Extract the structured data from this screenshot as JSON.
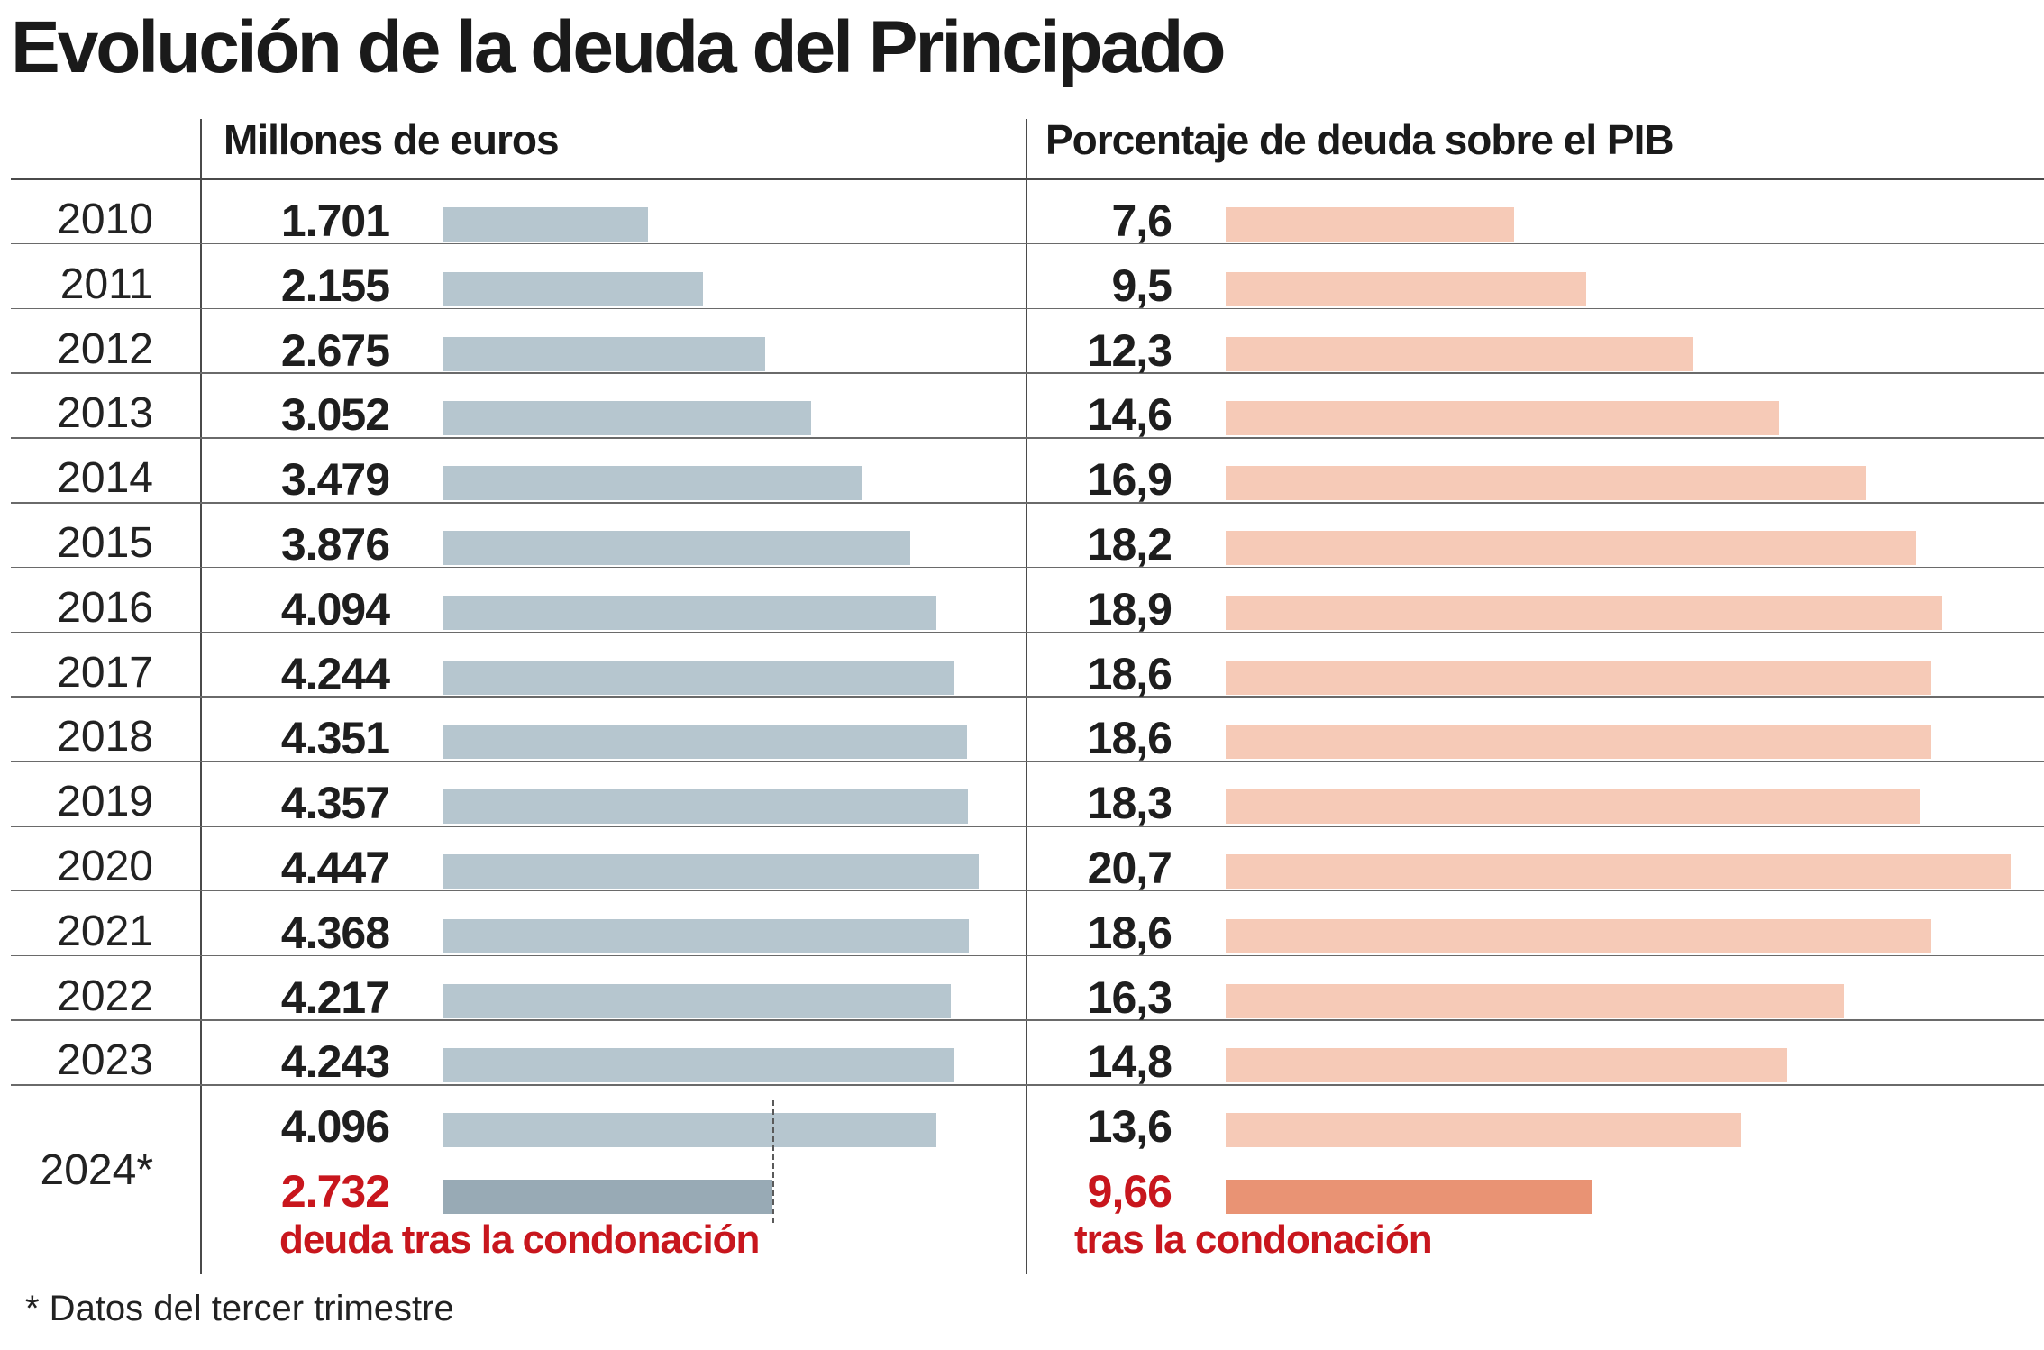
{
  "title": "Evolución de la deuda del Principado",
  "footnote": "* Datos del tercer trimestre",
  "chart_data": [
    {
      "type": "bar",
      "orientation": "horizontal",
      "title": "Millones de euros",
      "categories": [
        "2010",
        "2011",
        "2012",
        "2013",
        "2014",
        "2015",
        "2016",
        "2017",
        "2018",
        "2019",
        "2020",
        "2021",
        "2022",
        "2023",
        "2024*"
      ],
      "values": [
        1701,
        2155,
        2675,
        3052,
        3479,
        3876,
        4094,
        4244,
        4351,
        4357,
        4447,
        4368,
        4217,
        4243,
        4096
      ],
      "value_labels": [
        "1.701",
        "2.155",
        "2.675",
        "3.052",
        "3.479",
        "3.876",
        "4.094",
        "4.244",
        "4.351",
        "4.357",
        "4.447",
        "4.368",
        "4.217",
        "4.243",
        "4.096"
      ],
      "after_value": 2732,
      "after_label": "2.732",
      "after_note": "deuda tras la condonación",
      "bar_color": "#b6c6cf",
      "after_bar_color": "#98aab5",
      "highlight_color": "#c8161d"
    },
    {
      "type": "bar",
      "orientation": "horizontal",
      "title": "Porcentaje de deuda sobre el PIB",
      "categories": [
        "2010",
        "2011",
        "2012",
        "2013",
        "2014",
        "2015",
        "2016",
        "2017",
        "2018",
        "2019",
        "2020",
        "2021",
        "2022",
        "2023",
        "2024*"
      ],
      "values": [
        7.6,
        9.5,
        12.3,
        14.6,
        16.9,
        18.2,
        18.9,
        18.6,
        18.6,
        18.3,
        20.7,
        18.6,
        16.3,
        14.8,
        13.6
      ],
      "value_labels": [
        "7,6",
        "9,5",
        "12,3",
        "14,6",
        "16,9",
        "18,2",
        "18,9",
        "18,6",
        "18,6",
        "18,3",
        "20,7",
        "18,6",
        "16,3",
        "14,8",
        "13,6"
      ],
      "after_value": 9.66,
      "after_label": "9,66",
      "after_note": "tras la condonación",
      "bar_color": "#f6cab7",
      "after_bar_color": "#e99374",
      "highlight_color": "#c8161d"
    }
  ]
}
